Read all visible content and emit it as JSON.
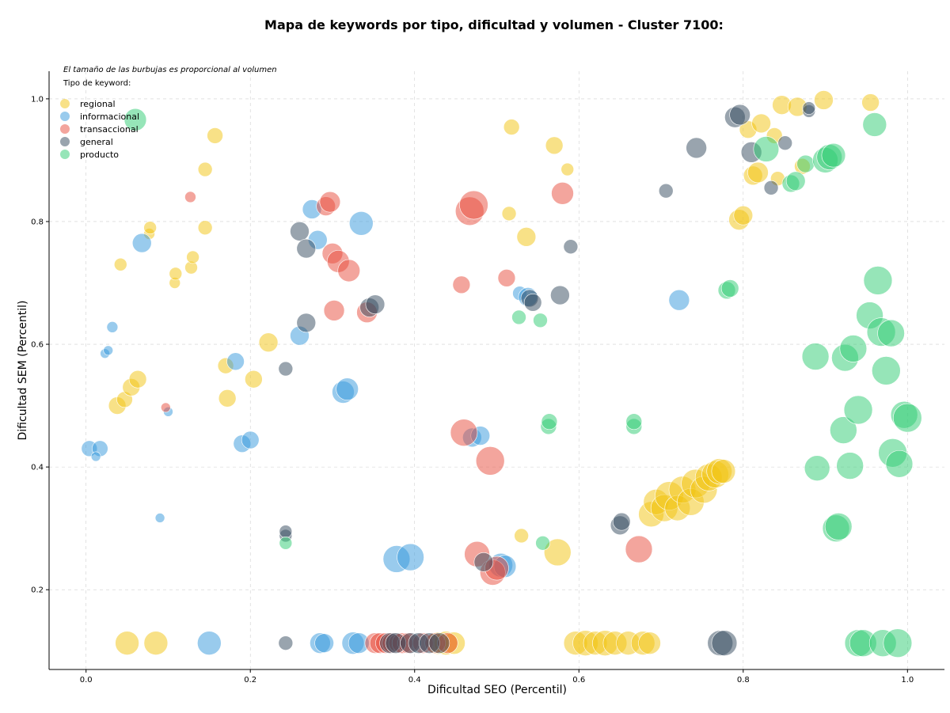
{
  "chart_data": {
    "type": "scatter",
    "title": "Mapa de keywords por tipo, dificultad y volumen - Cluster 7100:",
    "xlabel": "Dificultad SEO (Percentil)",
    "ylabel": "Dificultad SEM (Percentil)",
    "xlim": [
      -0.045,
      1.045
    ],
    "ylim": [
      0.07,
      1.045
    ],
    "xticks": [
      0.0,
      0.2,
      0.4,
      0.6,
      0.8,
      1.0
    ],
    "yticks": [
      0.2,
      0.4,
      0.6,
      0.8,
      1.0
    ],
    "xtick_labels": [
      "0.0",
      "0.2",
      "0.4",
      "0.6",
      "0.8",
      "1.0"
    ],
    "ytick_labels": [
      "0.2",
      "0.4",
      "0.6",
      "0.8",
      "1.0"
    ],
    "grid": true,
    "note": "El tamaño de las burbujas es proporcional al volumen",
    "legend_title": "Tipo de keyword:",
    "legend_position": "top-left",
    "series": [
      {
        "name": "regional",
        "color": "#f1c40f",
        "points": [
          {
            "x": 0.05,
            "y": 0.113,
            "r": 15
          },
          {
            "x": 0.085,
            "y": 0.113,
            "r": 15
          },
          {
            "x": 0.038,
            "y": 0.5,
            "r": 11
          },
          {
            "x": 0.047,
            "y": 0.51,
            "r": 10
          },
          {
            "x": 0.055,
            "y": 0.53,
            "r": 11
          },
          {
            "x": 0.063,
            "y": 0.543,
            "r": 11
          },
          {
            "x": 0.042,
            "y": 0.73,
            "r": 8
          },
          {
            "x": 0.077,
            "y": 0.78,
            "r": 7
          },
          {
            "x": 0.078,
            "y": 0.79,
            "r": 8
          },
          {
            "x": 0.108,
            "y": 0.7,
            "r": 7
          },
          {
            "x": 0.109,
            "y": 0.715,
            "r": 8
          },
          {
            "x": 0.128,
            "y": 0.725,
            "r": 8
          },
          {
            "x": 0.13,
            "y": 0.742,
            "r": 8
          },
          {
            "x": 0.145,
            "y": 0.79,
            "r": 9
          },
          {
            "x": 0.145,
            "y": 0.885,
            "r": 9
          },
          {
            "x": 0.157,
            "y": 0.94,
            "r": 10
          },
          {
            "x": 0.17,
            "y": 0.565,
            "r": 10
          },
          {
            "x": 0.172,
            "y": 0.512,
            "r": 11
          },
          {
            "x": 0.204,
            "y": 0.543,
            "r": 11
          },
          {
            "x": 0.222,
            "y": 0.603,
            "r": 12
          },
          {
            "x": 0.428,
            "y": 0.113,
            "r": 14
          },
          {
            "x": 0.438,
            "y": 0.113,
            "r": 15
          },
          {
            "x": 0.448,
            "y": 0.113,
            "r": 14
          },
          {
            "x": 0.518,
            "y": 0.954,
            "r": 10
          },
          {
            "x": 0.515,
            "y": 0.813,
            "r": 9
          },
          {
            "x": 0.536,
            "y": 0.775,
            "r": 12
          },
          {
            "x": 0.53,
            "y": 0.288,
            "r": 9
          },
          {
            "x": 0.57,
            "y": 0.924,
            "r": 11
          },
          {
            "x": 0.586,
            "y": 0.885,
            "r": 8
          },
          {
            "x": 0.574,
            "y": 0.261,
            "r": 17
          },
          {
            "x": 0.596,
            "y": 0.113,
            "r": 15
          },
          {
            "x": 0.608,
            "y": 0.113,
            "r": 16
          },
          {
            "x": 0.62,
            "y": 0.113,
            "r": 15
          },
          {
            "x": 0.632,
            "y": 0.113,
            "r": 16
          },
          {
            "x": 0.644,
            "y": 0.113,
            "r": 15
          },
          {
            "x": 0.66,
            "y": 0.113,
            "r": 15
          },
          {
            "x": 0.678,
            "y": 0.113,
            "r": 15
          },
          {
            "x": 0.686,
            "y": 0.113,
            "r": 14
          },
          {
            "x": 0.688,
            "y": 0.323,
            "r": 16
          },
          {
            "x": 0.694,
            "y": 0.343,
            "r": 16
          },
          {
            "x": 0.704,
            "y": 0.333,
            "r": 17
          },
          {
            "x": 0.71,
            "y": 0.353,
            "r": 18
          },
          {
            "x": 0.72,
            "y": 0.333,
            "r": 16
          },
          {
            "x": 0.726,
            "y": 0.363,
            "r": 17
          },
          {
            "x": 0.736,
            "y": 0.343,
            "r": 17
          },
          {
            "x": 0.742,
            "y": 0.373,
            "r": 18
          },
          {
            "x": 0.752,
            "y": 0.363,
            "r": 17
          },
          {
            "x": 0.758,
            "y": 0.383,
            "r": 17
          },
          {
            "x": 0.766,
            "y": 0.388,
            "r": 17
          },
          {
            "x": 0.771,
            "y": 0.393,
            "r": 16
          },
          {
            "x": 0.776,
            "y": 0.393,
            "r": 15
          },
          {
            "x": 0.795,
            "y": 0.803,
            "r": 13
          },
          {
            "x": 0.8,
            "y": 0.81,
            "r": 12
          },
          {
            "x": 0.806,
            "y": 0.95,
            "r": 11
          },
          {
            "x": 0.812,
            "y": 0.875,
            "r": 12
          },
          {
            "x": 0.818,
            "y": 0.88,
            "r": 13
          },
          {
            "x": 0.822,
            "y": 0.96,
            "r": 12
          },
          {
            "x": 0.838,
            "y": 0.94,
            "r": 10
          },
          {
            "x": 0.842,
            "y": 0.87,
            "r": 9
          },
          {
            "x": 0.847,
            "y": 0.99,
            "r": 12
          },
          {
            "x": 0.866,
            "y": 0.987,
            "r": 12
          },
          {
            "x": 0.872,
            "y": 0.89,
            "r": 10
          },
          {
            "x": 0.898,
            "y": 0.998,
            "r": 12
          },
          {
            "x": 0.955,
            "y": 0.994,
            "r": 11
          }
        ]
      },
      {
        "name": "informacional",
        "color": "#3498db",
        "points": [
          {
            "x": 0.004,
            "y": 0.43,
            "r": 10
          },
          {
            "x": 0.017,
            "y": 0.43,
            "r": 10
          },
          {
            "x": 0.012,
            "y": 0.417,
            "r": 6
          },
          {
            "x": 0.023,
            "y": 0.585,
            "r": 6
          },
          {
            "x": 0.027,
            "y": 0.59,
            "r": 6
          },
          {
            "x": 0.032,
            "y": 0.628,
            "r": 7
          },
          {
            "x": 0.068,
            "y": 0.765,
            "r": 12
          },
          {
            "x": 0.09,
            "y": 0.317,
            "r": 6
          },
          {
            "x": 0.1,
            "y": 0.49,
            "r": 6
          },
          {
            "x": 0.15,
            "y": 0.113,
            "r": 15
          },
          {
            "x": 0.182,
            "y": 0.572,
            "r": 11
          },
          {
            "x": 0.19,
            "y": 0.438,
            "r": 11
          },
          {
            "x": 0.2,
            "y": 0.444,
            "r": 11
          },
          {
            "x": 0.26,
            "y": 0.614,
            "r": 12
          },
          {
            "x": 0.275,
            "y": 0.82,
            "r": 12
          },
          {
            "x": 0.282,
            "y": 0.77,
            "r": 12
          },
          {
            "x": 0.285,
            "y": 0.113,
            "r": 13
          },
          {
            "x": 0.29,
            "y": 0.113,
            "r": 12
          },
          {
            "x": 0.313,
            "y": 0.522,
            "r": 14
          },
          {
            "x": 0.318,
            "y": 0.527,
            "r": 14
          },
          {
            "x": 0.325,
            "y": 0.113,
            "r": 14
          },
          {
            "x": 0.332,
            "y": 0.113,
            "r": 13
          },
          {
            "x": 0.335,
            "y": 0.797,
            "r": 15
          },
          {
            "x": 0.378,
            "y": 0.25,
            "r": 17
          },
          {
            "x": 0.395,
            "y": 0.253,
            "r": 17
          },
          {
            "x": 0.47,
            "y": 0.448,
            "r": 12
          },
          {
            "x": 0.48,
            "y": 0.451,
            "r": 12
          },
          {
            "x": 0.505,
            "y": 0.24,
            "r": 15
          },
          {
            "x": 0.51,
            "y": 0.238,
            "r": 14
          },
          {
            "x": 0.528,
            "y": 0.683,
            "r": 9
          },
          {
            "x": 0.538,
            "y": 0.677,
            "r": 12
          },
          {
            "x": 0.722,
            "y": 0.672,
            "r": 13
          }
        ]
      },
      {
        "name": "transaccional",
        "color": "#e74c3c",
        "points": [
          {
            "x": 0.097,
            "y": 0.497,
            "r": 6
          },
          {
            "x": 0.127,
            "y": 0.84,
            "r": 7
          },
          {
            "x": 0.292,
            "y": 0.825,
            "r": 12
          },
          {
            "x": 0.297,
            "y": 0.832,
            "r": 13
          },
          {
            "x": 0.3,
            "y": 0.748,
            "r": 13
          },
          {
            "x": 0.302,
            "y": 0.655,
            "r": 13
          },
          {
            "x": 0.307,
            "y": 0.735,
            "r": 14
          },
          {
            "x": 0.32,
            "y": 0.72,
            "r": 14
          },
          {
            "x": 0.342,
            "y": 0.652,
            "r": 13
          },
          {
            "x": 0.352,
            "y": 0.113,
            "r": 13
          },
          {
            "x": 0.358,
            "y": 0.113,
            "r": 13
          },
          {
            "x": 0.365,
            "y": 0.113,
            "r": 13
          },
          {
            "x": 0.373,
            "y": 0.113,
            "r": 13
          },
          {
            "x": 0.38,
            "y": 0.113,
            "r": 12
          },
          {
            "x": 0.385,
            "y": 0.113,
            "r": 13
          },
          {
            "x": 0.392,
            "y": 0.113,
            "r": 13
          },
          {
            "x": 0.41,
            "y": 0.113,
            "r": 13
          },
          {
            "x": 0.425,
            "y": 0.113,
            "r": 13
          },
          {
            "x": 0.44,
            "y": 0.113,
            "r": 13
          },
          {
            "x": 0.457,
            "y": 0.697,
            "r": 11
          },
          {
            "x": 0.46,
            "y": 0.456,
            "r": 17
          },
          {
            "x": 0.467,
            "y": 0.817,
            "r": 18
          },
          {
            "x": 0.472,
            "y": 0.827,
            "r": 18
          },
          {
            "x": 0.476,
            "y": 0.258,
            "r": 16
          },
          {
            "x": 0.492,
            "y": 0.41,
            "r": 18
          },
          {
            "x": 0.495,
            "y": 0.228,
            "r": 16
          },
          {
            "x": 0.5,
            "y": 0.235,
            "r": 15
          },
          {
            "x": 0.512,
            "y": 0.708,
            "r": 11
          },
          {
            "x": 0.58,
            "y": 0.846,
            "r": 14
          },
          {
            "x": 0.673,
            "y": 0.266,
            "r": 17
          }
        ]
      },
      {
        "name": "general",
        "color": "#34495e",
        "points": [
          {
            "x": 0.243,
            "y": 0.113,
            "r": 9
          },
          {
            "x": 0.243,
            "y": 0.56,
            "r": 9
          },
          {
            "x": 0.243,
            "y": 0.288,
            "r": 8
          },
          {
            "x": 0.243,
            "y": 0.295,
            "r": 8
          },
          {
            "x": 0.26,
            "y": 0.784,
            "r": 12
          },
          {
            "x": 0.268,
            "y": 0.756,
            "r": 12
          },
          {
            "x": 0.268,
            "y": 0.635,
            "r": 12
          },
          {
            "x": 0.345,
            "y": 0.66,
            "r": 12
          },
          {
            "x": 0.352,
            "y": 0.665,
            "r": 12
          },
          {
            "x": 0.37,
            "y": 0.113,
            "r": 13
          },
          {
            "x": 0.377,
            "y": 0.113,
            "r": 13
          },
          {
            "x": 0.395,
            "y": 0.113,
            "r": 13
          },
          {
            "x": 0.405,
            "y": 0.113,
            "r": 13
          },
          {
            "x": 0.418,
            "y": 0.113,
            "r": 13
          },
          {
            "x": 0.43,
            "y": 0.113,
            "r": 13
          },
          {
            "x": 0.484,
            "y": 0.245,
            "r": 12
          },
          {
            "x": 0.54,
            "y": 0.675,
            "r": 11
          },
          {
            "x": 0.544,
            "y": 0.668,
            "r": 11
          },
          {
            "x": 0.577,
            "y": 0.68,
            "r": 12
          },
          {
            "x": 0.59,
            "y": 0.759,
            "r": 9
          },
          {
            "x": 0.65,
            "y": 0.305,
            "r": 12
          },
          {
            "x": 0.652,
            "y": 0.311,
            "r": 11
          },
          {
            "x": 0.706,
            "y": 0.85,
            "r": 9
          },
          {
            "x": 0.743,
            "y": 0.92,
            "r": 13
          },
          {
            "x": 0.772,
            "y": 0.113,
            "r": 16
          },
          {
            "x": 0.777,
            "y": 0.113,
            "r": 16
          },
          {
            "x": 0.79,
            "y": 0.97,
            "r": 13
          },
          {
            "x": 0.796,
            "y": 0.974,
            "r": 13
          },
          {
            "x": 0.81,
            "y": 0.913,
            "r": 13
          },
          {
            "x": 0.834,
            "y": 0.855,
            "r": 9
          },
          {
            "x": 0.851,
            "y": 0.928,
            "r": 9
          },
          {
            "x": 0.88,
            "y": 0.98,
            "r": 8
          },
          {
            "x": 0.88,
            "y": 0.985,
            "r": 8
          }
        ]
      },
      {
        "name": "producto",
        "color": "#2ecc71",
        "points": [
          {
            "x": 0.06,
            "y": 0.966,
            "r": 14
          },
          {
            "x": 0.243,
            "y": 0.276,
            "r": 8
          },
          {
            "x": 0.527,
            "y": 0.644,
            "r": 9
          },
          {
            "x": 0.553,
            "y": 0.639,
            "r": 9
          },
          {
            "x": 0.556,
            "y": 0.276,
            "r": 9
          },
          {
            "x": 0.563,
            "y": 0.466,
            "r": 10
          },
          {
            "x": 0.564,
            "y": 0.474,
            "r": 10
          },
          {
            "x": 0.667,
            "y": 0.466,
            "r": 10
          },
          {
            "x": 0.667,
            "y": 0.474,
            "r": 10
          },
          {
            "x": 0.78,
            "y": 0.688,
            "r": 11
          },
          {
            "x": 0.784,
            "y": 0.691,
            "r": 11
          },
          {
            "x": 0.828,
            "y": 0.918,
            "r": 16
          },
          {
            "x": 0.858,
            "y": 0.862,
            "r": 11
          },
          {
            "x": 0.864,
            "y": 0.866,
            "r": 12
          },
          {
            "x": 0.876,
            "y": 0.894,
            "r": 11
          },
          {
            "x": 0.888,
            "y": 0.58,
            "r": 17
          },
          {
            "x": 0.89,
            "y": 0.398,
            "r": 16
          },
          {
            "x": 0.9,
            "y": 0.9,
            "r": 16
          },
          {
            "x": 0.905,
            "y": 0.905,
            "r": 16
          },
          {
            "x": 0.91,
            "y": 0.908,
            "r": 15
          },
          {
            "x": 0.913,
            "y": 0.3,
            "r": 17
          },
          {
            "x": 0.916,
            "y": 0.303,
            "r": 17
          },
          {
            "x": 0.922,
            "y": 0.46,
            "r": 17
          },
          {
            "x": 0.924,
            "y": 0.578,
            "r": 17
          },
          {
            "x": 0.93,
            "y": 0.402,
            "r": 17
          },
          {
            "x": 0.934,
            "y": 0.593,
            "r": 17
          },
          {
            "x": 0.94,
            "y": 0.493,
            "r": 18
          },
          {
            "x": 0.94,
            "y": 0.113,
            "r": 17
          },
          {
            "x": 0.946,
            "y": 0.113,
            "r": 17
          },
          {
            "x": 0.954,
            "y": 0.647,
            "r": 17
          },
          {
            "x": 0.96,
            "y": 0.958,
            "r": 15
          },
          {
            "x": 0.964,
            "y": 0.704,
            "r": 18
          },
          {
            "x": 0.968,
            "y": 0.62,
            "r": 18
          },
          {
            "x": 0.97,
            "y": 0.113,
            "r": 17
          },
          {
            "x": 0.974,
            "y": 0.557,
            "r": 18
          },
          {
            "x": 0.98,
            "y": 0.618,
            "r": 17
          },
          {
            "x": 0.982,
            "y": 0.423,
            "r": 18
          },
          {
            "x": 0.988,
            "y": 0.113,
            "r": 18
          },
          {
            "x": 0.99,
            "y": 0.405,
            "r": 17
          },
          {
            "x": 0.996,
            "y": 0.485,
            "r": 17
          },
          {
            "x": 1.0,
            "y": 0.48,
            "r": 18
          }
        ]
      }
    ]
  }
}
